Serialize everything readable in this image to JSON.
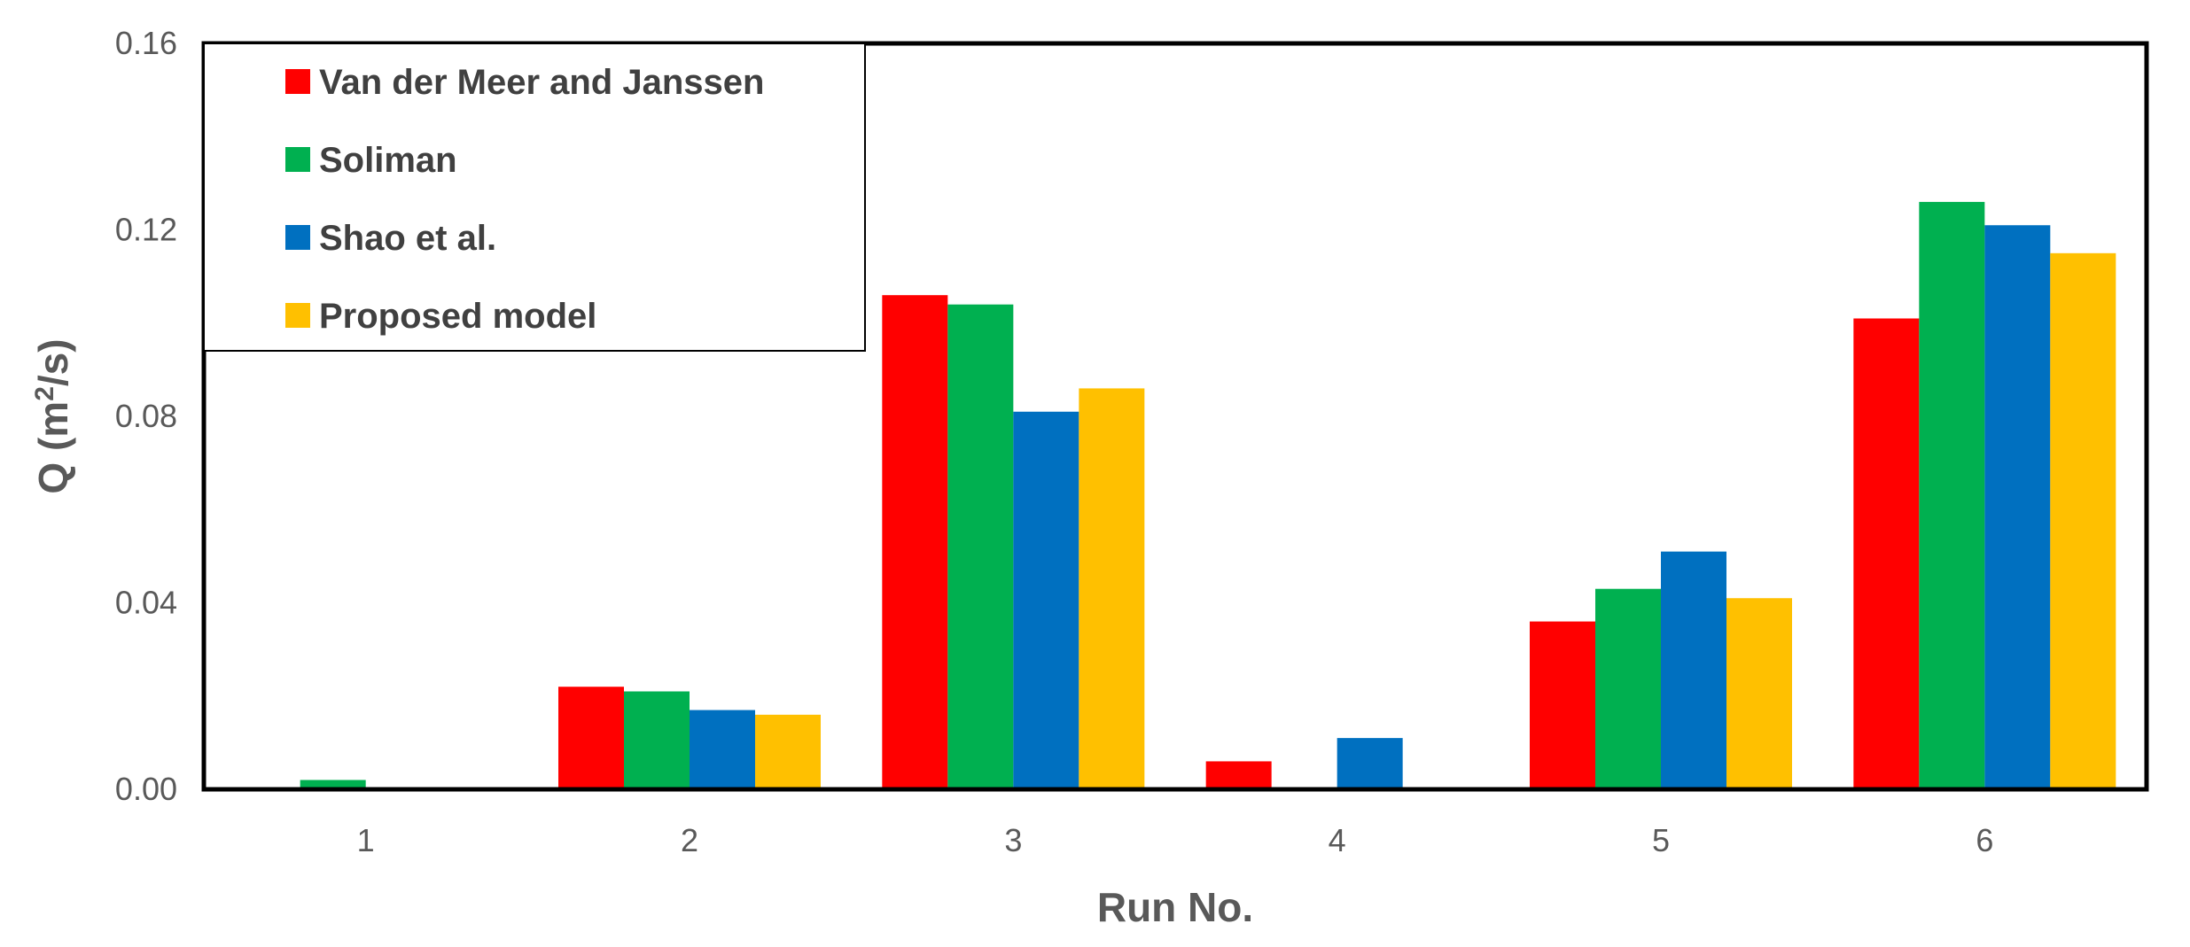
{
  "chart_data": {
    "type": "bar",
    "title": "",
    "xlabel": "Run No.",
    "ylabel_main": "Q (m",
    "ylabel_sup": "2",
    "ylabel_tail": "/s)",
    "categories": [
      "1",
      "2",
      "3",
      "4",
      "5",
      "6"
    ],
    "ylim": [
      0,
      0.16
    ],
    "yticks": [
      "0.00",
      "0.04",
      "0.08",
      "0.12",
      "0.16"
    ],
    "legend_position": "top-left",
    "grid": false,
    "series": [
      {
        "name": "Van der Meer and Janssen",
        "color": "#ff0000",
        "values": [
          0,
          0.022,
          0.106,
          0.006,
          0.036,
          0.101
        ]
      },
      {
        "name": "Soliman",
        "color": "#00b050",
        "values": [
          0.002,
          0.021,
          0.104,
          0,
          0.043,
          0.126
        ]
      },
      {
        "name": "Shao et al.",
        "color": "#0070c0",
        "values": [
          0,
          0.017,
          0.081,
          0.011,
          0.051,
          0.121
        ]
      },
      {
        "name": "Proposed model",
        "color": "#ffc000",
        "values": [
          0,
          0.016,
          0.086,
          0,
          0.041,
          0.115
        ]
      }
    ]
  }
}
